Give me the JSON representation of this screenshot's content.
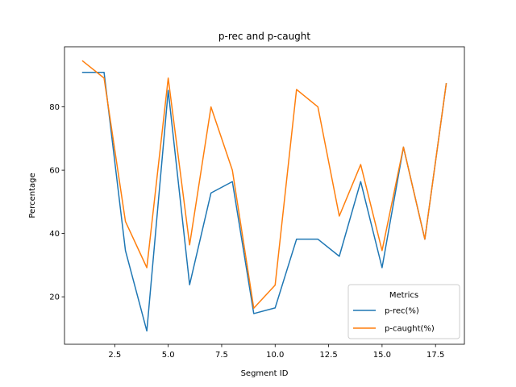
{
  "chart_data": {
    "type": "line",
    "title": "p-rec and p-caught",
    "xlabel": "Segment ID",
    "ylabel": "Percentage",
    "xlim": [
      0.15,
      18.85
    ],
    "ylim": [
      5,
      99
    ],
    "x_ticks": [
      2.5,
      5.0,
      7.5,
      10.0,
      12.5,
      15.0,
      17.5
    ],
    "x_tick_labels": [
      "2.5",
      "5.0",
      "7.5",
      "10.0",
      "12.5",
      "15.0",
      "17.5"
    ],
    "y_ticks": [
      20,
      40,
      60,
      80
    ],
    "y_tick_labels": [
      "20",
      "40",
      "60",
      "80"
    ],
    "grid": false,
    "legend": {
      "title": "Metrics",
      "placement": "lower-right"
    },
    "x": [
      1,
      2,
      3,
      4,
      5,
      6,
      7,
      8,
      9,
      10,
      11,
      12,
      13,
      14,
      15,
      16,
      17,
      18
    ],
    "series": [
      {
        "name": "p-rec(%)",
        "color": "#1f77b4",
        "values": [
          90.9,
          90.9,
          34.6,
          9.2,
          85.2,
          23.8,
          52.8,
          56.4,
          14.7,
          16.5,
          38.2,
          38.2,
          32.8,
          56.4,
          29.2,
          67.3,
          38.2,
          87.3
        ]
      },
      {
        "name": "p-caught(%)",
        "color": "#ff7f0e",
        "values": [
          94.5,
          89.1,
          43.8,
          29.2,
          89.1,
          36.4,
          80.0,
          60.0,
          16.4,
          23.7,
          85.5,
          80.0,
          45.5,
          61.8,
          34.6,
          67.3,
          38.2,
          87.3
        ]
      }
    ]
  }
}
